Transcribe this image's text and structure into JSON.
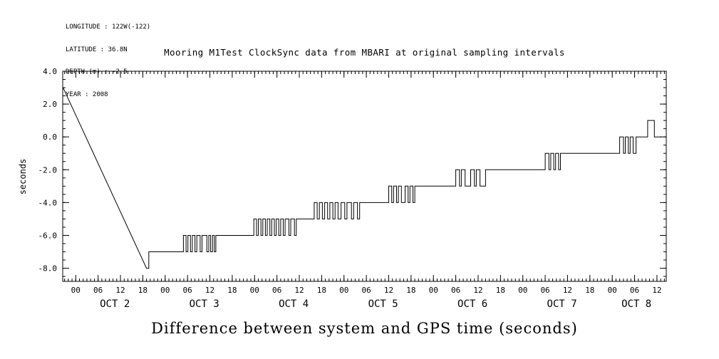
{
  "colors": {
    "background": "#ffffff",
    "line": "#000000"
  },
  "header_info": {
    "line1": "LONGITUDE : 122W(-122)",
    "line2": "LATITUDE : 36.8N",
    "line3": "DEPTH (m) : -2.5",
    "line4": "YEAR : 2008"
  },
  "chart_data": {
    "type": "line",
    "title": "Mooring M1Test ClockSync data from MBARI at original sampling intervals",
    "caption": "Difference between system and GPS time (seconds)",
    "ylabel": "seconds",
    "x_unit": "hours since 2008-10-02 00:00",
    "xlim": [
      -3.5,
      158.5
    ],
    "ylim": [
      -8.8,
      4.0
    ],
    "x_minor_step": 1,
    "y_minor_step": 0.5,
    "grid": false,
    "y_ticks": [
      {
        "v": 4,
        "label": "4.0"
      },
      {
        "v": 2,
        "label": "2.0"
      },
      {
        "v": 0,
        "label": "0.0"
      },
      {
        "v": -2,
        "label": "-2.0"
      },
      {
        "v": -4,
        "label": "-4.0"
      },
      {
        "v": -6,
        "label": "-6.0"
      },
      {
        "v": -8,
        "label": "-8.0"
      }
    ],
    "x_ticks": [
      {
        "t": 0,
        "label": "00"
      },
      {
        "t": 6,
        "label": "06"
      },
      {
        "t": 12,
        "label": "12"
      },
      {
        "t": 18,
        "label": "18"
      },
      {
        "t": 24,
        "label": "00"
      },
      {
        "t": 30,
        "label": "06"
      },
      {
        "t": 36,
        "label": "12"
      },
      {
        "t": 42,
        "label": "18"
      },
      {
        "t": 48,
        "label": "00"
      },
      {
        "t": 54,
        "label": "06"
      },
      {
        "t": 60,
        "label": "12"
      },
      {
        "t": 66,
        "label": "18"
      },
      {
        "t": 72,
        "label": "00"
      },
      {
        "t": 78,
        "label": "06"
      },
      {
        "t": 84,
        "label": "12"
      },
      {
        "t": 90,
        "label": "18"
      },
      {
        "t": 96,
        "label": "00"
      },
      {
        "t": 102,
        "label": "06"
      },
      {
        "t": 108,
        "label": "12"
      },
      {
        "t": 114,
        "label": "18"
      },
      {
        "t": 120,
        "label": "00"
      },
      {
        "t": 126,
        "label": "06"
      },
      {
        "t": 132,
        "label": "12"
      },
      {
        "t": 138,
        "label": "18"
      },
      {
        "t": 144,
        "label": "00"
      },
      {
        "t": 150,
        "label": "06"
      },
      {
        "t": 156,
        "label": "12"
      }
    ],
    "day_labels": [
      {
        "t": 10.5,
        "label": "OCT 2"
      },
      {
        "t": 34.5,
        "label": "OCT 3"
      },
      {
        "t": 58.5,
        "label": "OCT 4"
      },
      {
        "t": 82.5,
        "label": "OCT 5"
      },
      {
        "t": 106.5,
        "label": "OCT 6"
      },
      {
        "t": 130.5,
        "label": "OCT 7"
      },
      {
        "t": 150.5,
        "label": "OCT 8"
      }
    ],
    "series": [
      {
        "name": "system_minus_gps_seconds",
        "color": "#000000",
        "points": [
          [
            -3.4,
            3.0
          ],
          [
            19.0,
            -8.0
          ],
          [
            19.6,
            -8.0
          ],
          [
            19.6,
            -7.0
          ],
          [
            28.9,
            -7
          ],
          [
            28.9,
            -6
          ],
          [
            29.6,
            -6
          ],
          [
            29.6,
            -7
          ],
          [
            30.1,
            -7
          ],
          [
            30.1,
            -6
          ],
          [
            30.8,
            -6
          ],
          [
            30.8,
            -7
          ],
          [
            31.3,
            -7
          ],
          [
            31.3,
            -6
          ],
          [
            32.0,
            -6
          ],
          [
            32.0,
            -7
          ],
          [
            32.5,
            -7
          ],
          [
            32.5,
            -6
          ],
          [
            33.4,
            -6
          ],
          [
            33.4,
            -7
          ],
          [
            33.9,
            -7
          ],
          [
            33.9,
            -6
          ],
          [
            35.2,
            -6
          ],
          [
            35.2,
            -7
          ],
          [
            35.7,
            -7
          ],
          [
            35.7,
            -6
          ],
          [
            36.2,
            -6
          ],
          [
            36.2,
            -7
          ],
          [
            36.7,
            -7
          ],
          [
            36.7,
            -6
          ],
          [
            37.2,
            -6
          ],
          [
            37.2,
            -7
          ],
          [
            37.6,
            -7
          ],
          [
            37.6,
            -6
          ],
          [
            47.8,
            -6
          ],
          [
            47.8,
            -5
          ],
          [
            48.5,
            -5
          ],
          [
            48.5,
            -6
          ],
          [
            49.0,
            -6
          ],
          [
            49.0,
            -5
          ],
          [
            49.7,
            -5
          ],
          [
            49.7,
            -6
          ],
          [
            50.2,
            -6
          ],
          [
            50.2,
            -5
          ],
          [
            50.9,
            -5
          ],
          [
            50.9,
            -6
          ],
          [
            51.4,
            -6
          ],
          [
            51.4,
            -5
          ],
          [
            52.1,
            -5
          ],
          [
            52.1,
            -6
          ],
          [
            52.6,
            -6
          ],
          [
            52.6,
            -5
          ],
          [
            53.3,
            -5
          ],
          [
            53.3,
            -6
          ],
          [
            53.8,
            -6
          ],
          [
            53.8,
            -5
          ],
          [
            54.5,
            -5
          ],
          [
            54.5,
            -6
          ],
          [
            55.0,
            -6
          ],
          [
            55.0,
            -5
          ],
          [
            55.7,
            -5
          ],
          [
            55.7,
            -6
          ],
          [
            56.2,
            -6
          ],
          [
            56.2,
            -5
          ],
          [
            57.2,
            -5
          ],
          [
            57.2,
            -6
          ],
          [
            57.7,
            -6
          ],
          [
            57.7,
            -5
          ],
          [
            58.7,
            -5
          ],
          [
            58.7,
            -6
          ],
          [
            59.2,
            -6
          ],
          [
            59.2,
            -5
          ],
          [
            60.6,
            -5
          ],
          [
            64.0,
            -5
          ],
          [
            64.0,
            -4
          ],
          [
            64.8,
            -4
          ],
          [
            64.8,
            -5
          ],
          [
            65.4,
            -5
          ],
          [
            65.4,
            -4
          ],
          [
            66.2,
            -4
          ],
          [
            66.2,
            -5
          ],
          [
            66.8,
            -5
          ],
          [
            66.8,
            -4
          ],
          [
            67.6,
            -4
          ],
          [
            67.6,
            -5
          ],
          [
            68.2,
            -5
          ],
          [
            68.2,
            -4
          ],
          [
            69.0,
            -4
          ],
          [
            69.0,
            -5
          ],
          [
            69.6,
            -5
          ],
          [
            69.6,
            -4
          ],
          [
            70.4,
            -4
          ],
          [
            70.4,
            -5
          ],
          [
            71.2,
            -5
          ],
          [
            71.2,
            -4
          ],
          [
            72.2,
            -4
          ],
          [
            72.2,
            -5
          ],
          [
            72.8,
            -5
          ],
          [
            72.8,
            -4
          ],
          [
            74.0,
            -4
          ],
          [
            74.0,
            -5
          ],
          [
            74.6,
            -5
          ],
          [
            74.6,
            -4
          ],
          [
            75.6,
            -4
          ],
          [
            75.6,
            -5
          ],
          [
            76.2,
            -5
          ],
          [
            76.2,
            -4
          ],
          [
            84.0,
            -4
          ],
          [
            84.0,
            -3
          ],
          [
            84.8,
            -3
          ],
          [
            84.8,
            -4
          ],
          [
            85.3,
            -4
          ],
          [
            85.3,
            -3
          ],
          [
            86.1,
            -3
          ],
          [
            86.1,
            -4
          ],
          [
            86.6,
            -4
          ],
          [
            86.6,
            -3
          ],
          [
            87.4,
            -3
          ],
          [
            87.4,
            -4
          ],
          [
            88.4,
            -4
          ],
          [
            88.4,
            -3
          ],
          [
            89.2,
            -3
          ],
          [
            89.2,
            -4
          ],
          [
            89.7,
            -4
          ],
          [
            89.7,
            -3
          ],
          [
            90.5,
            -3
          ],
          [
            90.5,
            -4
          ],
          [
            91.0,
            -4
          ],
          [
            91.0,
            -3
          ],
          [
            102.0,
            -3
          ],
          [
            102.0,
            -2
          ],
          [
            103.0,
            -2
          ],
          [
            103.0,
            -3
          ],
          [
            103.5,
            -3
          ],
          [
            103.5,
            -2
          ],
          [
            104.5,
            -2
          ],
          [
            104.5,
            -3
          ],
          [
            106.0,
            -3
          ],
          [
            106.0,
            -2
          ],
          [
            107.0,
            -2
          ],
          [
            107.0,
            -3
          ],
          [
            107.5,
            -3
          ],
          [
            107.5,
            -2
          ],
          [
            108.5,
            -2
          ],
          [
            108.5,
            -3
          ],
          [
            110.0,
            -3
          ],
          [
            110.0,
            -2
          ],
          [
            112.0,
            -2
          ],
          [
            126.0,
            -2
          ],
          [
            126.0,
            -1
          ],
          [
            127.0,
            -1
          ],
          [
            127.0,
            -2
          ],
          [
            127.5,
            -2
          ],
          [
            127.5,
            -1
          ],
          [
            128.3,
            -1
          ],
          [
            128.3,
            -2
          ],
          [
            128.8,
            -2
          ],
          [
            128.8,
            -1
          ],
          [
            129.6,
            -1
          ],
          [
            129.6,
            -2
          ],
          [
            130.1,
            -2
          ],
          [
            130.1,
            -1
          ],
          [
            146.0,
            -1
          ],
          [
            146.0,
            0
          ],
          [
            147.0,
            0
          ],
          [
            147.0,
            -1
          ],
          [
            147.5,
            -1
          ],
          [
            147.5,
            0
          ],
          [
            148.3,
            0
          ],
          [
            148.3,
            -1
          ],
          [
            148.8,
            -1
          ],
          [
            148.8,
            0
          ],
          [
            149.6,
            0
          ],
          [
            149.6,
            -1
          ],
          [
            150.4,
            -1
          ],
          [
            150.4,
            0
          ],
          [
            151.5,
            0
          ],
          [
            153.5,
            0
          ],
          [
            153.5,
            1
          ],
          [
            155.3,
            1
          ],
          [
            155.3,
            0
          ],
          [
            157.3,
            0
          ]
        ]
      }
    ]
  }
}
